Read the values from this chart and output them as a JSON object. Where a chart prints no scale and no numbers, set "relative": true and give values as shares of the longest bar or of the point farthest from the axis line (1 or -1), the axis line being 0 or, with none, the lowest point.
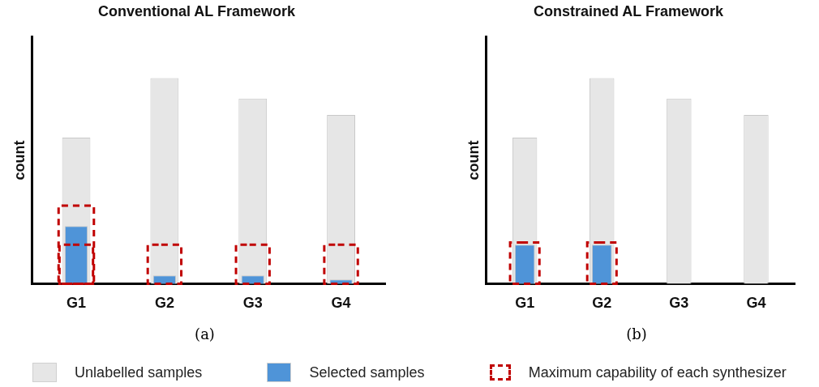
{
  "chart_data": [
    {
      "type": "bar",
      "title": "Conventional AL Framework",
      "ylabel": "count",
      "relative": true,
      "legend": "bottom",
      "categories": [
        "G1",
        "G2",
        "G3",
        "G4"
      ],
      "annotations": [
        "(a)"
      ],
      "series": [
        {
          "name": "Selected samples",
          "color": "#4f94d8",
          "values": [
            0.28,
            0.04,
            0.04,
            0.02
          ]
        },
        {
          "name": "Unlabelled samples",
          "color": "#e6e6e6",
          "values": [
            0.71,
            1,
            0.9,
            0.82
          ]
        },
        {
          "name": "Maximum capability of each synthesizer",
          "color": "#c00000",
          "line_style": "dashed",
          "values": [
            0.19,
            0.19,
            0.19,
            0.19
          ]
        },
        {
          "color": "#c00000",
          "line_style": "dashed",
          "values": [
            0.38,
            null,
            null,
            null
          ]
        }
      ]
    },
    {
      "type": "bar",
      "title": "Constrained AL Framework",
      "ylabel": "count",
      "relative": true,
      "categories": [
        "G1",
        "G2",
        "G3",
        "G4"
      ],
      "annotations": [
        "(b)"
      ],
      "series": [
        {
          "color": "#4f94d8",
          "values": [
            0.19,
            0.19,
            null,
            null
          ]
        },
        {
          "color": "#e6e6e6",
          "values": [
            0.71,
            1,
            0.9,
            0.82
          ]
        },
        {
          "color": "#c00000",
          "line_style": "dashed",
          "values": [
            0.2,
            0.2,
            null,
            null
          ]
        }
      ]
    }
  ]
}
